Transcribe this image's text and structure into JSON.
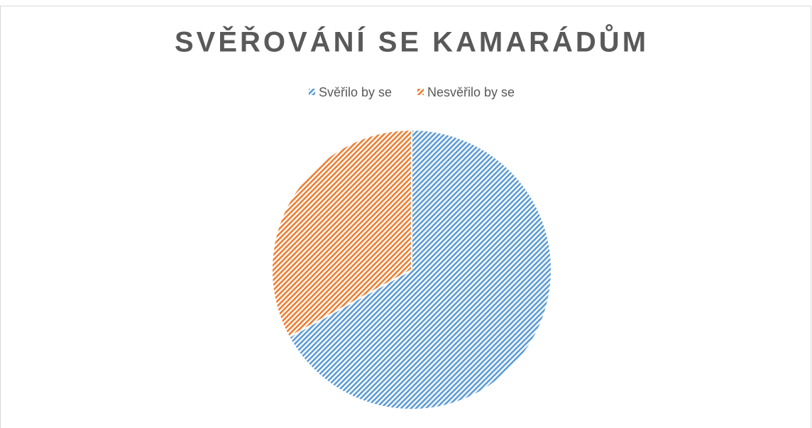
{
  "chart_data": {
    "type": "pie",
    "title": "SVĚŘOVÁNÍ SE KAMARÁDŮM",
    "categories": [
      "Svěřilo by se",
      "Nesvěřilo by se"
    ],
    "values": [
      67,
      33
    ],
    "colors": [
      "#5b9bd5",
      "#ed7d31"
    ],
    "legend": "top"
  }
}
